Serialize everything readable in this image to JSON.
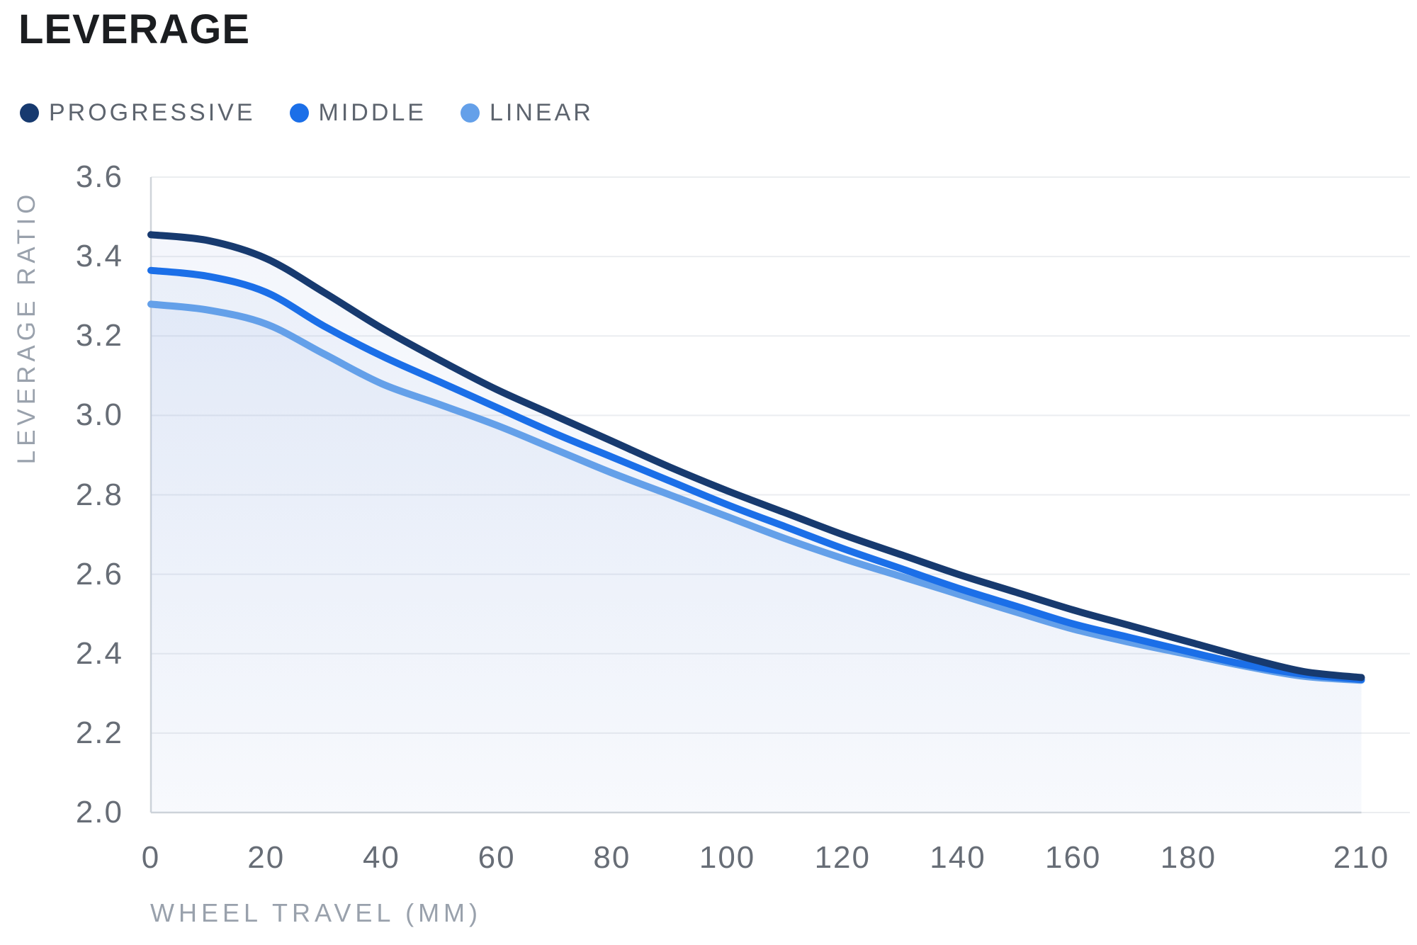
{
  "colors": {
    "title_text": "#1b1d20",
    "legend_text": "#5d646e",
    "tick_text": "#676d76",
    "axis_title_text": "#99a1ac",
    "grid": "#ebedf0",
    "axis": "#cfd4d9",
    "area_fill": "#82a0dc"
  },
  "chart_data": {
    "type": "line",
    "title": "LEVERAGE",
    "xlabel": "WHEEL TRAVEL (MM)",
    "ylabel": "LEVERAGE RATIO",
    "grid": "horizontal",
    "legend_position": "top-left",
    "xlim": [
      0,
      210
    ],
    "ylim": [
      2.0,
      3.6
    ],
    "xticks": [
      0,
      20,
      40,
      60,
      80,
      100,
      120,
      140,
      160,
      180,
      210
    ],
    "yticks": [
      "2.0",
      "2.2",
      "2.4",
      "2.6",
      "2.8",
      "3.0",
      "3.2",
      "3.4",
      "3.6"
    ],
    "x": [
      0,
      10,
      20,
      30,
      40,
      50,
      60,
      70,
      80,
      90,
      100,
      110,
      120,
      130,
      140,
      150,
      160,
      170,
      180,
      190,
      200,
      210
    ],
    "series": [
      {
        "name": "PROGRESSIVE",
        "color": "#173a6f",
        "values": [
          3.455,
          3.44,
          3.395,
          3.31,
          3.22,
          3.14,
          3.065,
          3.0,
          2.935,
          2.87,
          2.81,
          2.755,
          2.7,
          2.65,
          2.6,
          2.555,
          2.51,
          2.47,
          2.43,
          2.39,
          2.355,
          2.34
        ]
      },
      {
        "name": "MIDDLE",
        "color": "#1b6fe8",
        "values": [
          3.365,
          3.35,
          3.31,
          3.225,
          3.15,
          3.085,
          3.02,
          2.955,
          2.895,
          2.835,
          2.775,
          2.72,
          2.665,
          2.615,
          2.565,
          2.52,
          2.475,
          2.44,
          2.405,
          2.372,
          2.348,
          2.335
        ]
      },
      {
        "name": "LINEAR",
        "color": "#64a0e9",
        "values": [
          3.28,
          3.265,
          3.23,
          3.155,
          3.08,
          3.028,
          2.975,
          2.915,
          2.855,
          2.8,
          2.745,
          2.69,
          2.64,
          2.595,
          2.55,
          2.505,
          2.462,
          2.428,
          2.398,
          2.368,
          2.343,
          2.333
        ]
      }
    ]
  }
}
